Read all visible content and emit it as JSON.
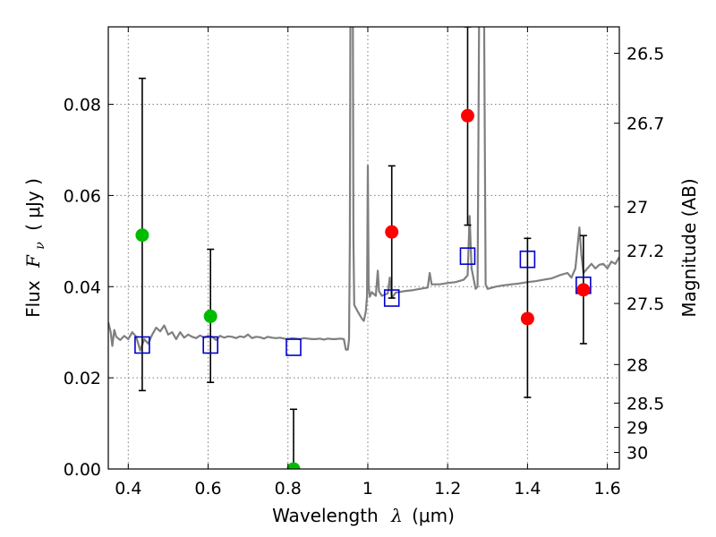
{
  "chart_data": {
    "type": "scatter",
    "xlabel": {
      "prefix": "Wavelength",
      "symbol": "λ",
      "unit": "(μm)"
    },
    "ylabel": {
      "prefix": "Flux",
      "symbol": "F",
      "sub": "ν",
      "unit": "( μJy )"
    },
    "ylabel_right": "Magnitude (AB)",
    "xlim": [
      0.35,
      1.63
    ],
    "ylim": [
      0.0,
      0.097
    ],
    "grid": true,
    "x_ticks": [
      0.4,
      0.6,
      0.8,
      1.0,
      1.2,
      1.4,
      1.6
    ],
    "x_tick_labels": [
      "0.4",
      "0.6",
      "0.8",
      "1",
      "1.2",
      "1.4",
      "1.6"
    ],
    "y_ticks": [
      0.0,
      0.02,
      0.04,
      0.06,
      0.08
    ],
    "y_tick_labels": [
      "0.00",
      "0.02",
      "0.04",
      "0.06",
      "0.08"
    ],
    "right_ticks": [
      {
        "mag": 26.5,
        "label": "26.5"
      },
      {
        "mag": 26.7,
        "label": "26.7"
      },
      {
        "mag": 27.0,
        "label": "27"
      },
      {
        "mag": 27.2,
        "label": "27.2"
      },
      {
        "mag": 27.5,
        "label": "27.5"
      },
      {
        "mag": 28.0,
        "label": "28"
      },
      {
        "mag": 28.5,
        "label": "28.5"
      },
      {
        "mag": 29.0,
        "label": "29"
      },
      {
        "mag": 30.0,
        "label": "30"
      }
    ],
    "colors": {
      "spectrum": "#7f7f7f",
      "optical_points": "#00bb00",
      "nir_points": "#ff0000",
      "model_points": "#0000cc",
      "grid": "#7a7a7a",
      "errorbar": "#000000"
    },
    "observed_points": [
      {
        "x": 0.435,
        "y": 0.0513,
        "err_low": 0.0172,
        "err_high": 0.0857,
        "color": "optical"
      },
      {
        "x": 0.606,
        "y": 0.0335,
        "err_low": 0.019,
        "err_high": 0.0482,
        "color": "optical"
      },
      {
        "x": 0.814,
        "y": 0.0,
        "err_low": 0.0,
        "err_high": 0.0131,
        "color": "optical"
      },
      {
        "x": 1.06,
        "y": 0.052,
        "err_low": 0.0375,
        "err_high": 0.0665,
        "color": "nir"
      },
      {
        "x": 1.25,
        "y": 0.0775,
        "err_low": 0.0535,
        "err_high": 0.097,
        "color": "nir"
      },
      {
        "x": 1.4,
        "y": 0.033,
        "err_low": 0.0157,
        "err_high": 0.0506,
        "color": "nir"
      },
      {
        "x": 1.54,
        "y": 0.0393,
        "err_low": 0.0275,
        "err_high": 0.0512,
        "color": "nir"
      }
    ],
    "model_photometry": [
      {
        "x": 0.435,
        "y": 0.0272
      },
      {
        "x": 0.606,
        "y": 0.0272
      },
      {
        "x": 0.814,
        "y": 0.0267
      },
      {
        "x": 1.06,
        "y": 0.0375
      },
      {
        "x": 1.25,
        "y": 0.0467
      },
      {
        "x": 1.4,
        "y": 0.046
      },
      {
        "x": 1.54,
        "y": 0.0403
      }
    ],
    "spectrum": [
      [
        0.35,
        0.0322
      ],
      [
        0.356,
        0.03
      ],
      [
        0.36,
        0.027
      ],
      [
        0.365,
        0.0305
      ],
      [
        0.37,
        0.029
      ],
      [
        0.38,
        0.0283
      ],
      [
        0.39,
        0.0292
      ],
      [
        0.4,
        0.0285
      ],
      [
        0.41,
        0.03
      ],
      [
        0.42,
        0.029
      ],
      [
        0.43,
        0.026
      ],
      [
        0.44,
        0.0285
      ],
      [
        0.45,
        0.0275
      ],
      [
        0.46,
        0.0295
      ],
      [
        0.47,
        0.031
      ],
      [
        0.48,
        0.0302
      ],
      [
        0.49,
        0.0315
      ],
      [
        0.5,
        0.0295
      ],
      [
        0.51,
        0.03
      ],
      [
        0.52,
        0.0285
      ],
      [
        0.53,
        0.03
      ],
      [
        0.54,
        0.0288
      ],
      [
        0.55,
        0.0295
      ],
      [
        0.56,
        0.029
      ],
      [
        0.57,
        0.0287
      ],
      [
        0.58,
        0.0293
      ],
      [
        0.59,
        0.0288
      ],
      [
        0.6,
        0.0292
      ],
      [
        0.61,
        0.029
      ],
      [
        0.62,
        0.0283
      ],
      [
        0.63,
        0.0292
      ],
      [
        0.64,
        0.0288
      ],
      [
        0.65,
        0.0291
      ],
      [
        0.66,
        0.029
      ],
      [
        0.67,
        0.0287
      ],
      [
        0.68,
        0.0291
      ],
      [
        0.69,
        0.0289
      ],
      [
        0.7,
        0.0295
      ],
      [
        0.71,
        0.0287
      ],
      [
        0.72,
        0.029
      ],
      [
        0.73,
        0.0289
      ],
      [
        0.74,
        0.0286
      ],
      [
        0.75,
        0.029
      ],
      [
        0.76,
        0.0288
      ],
      [
        0.77,
        0.0287
      ],
      [
        0.78,
        0.0288
      ],
      [
        0.79,
        0.0286
      ],
      [
        0.8,
        0.0285
      ],
      [
        0.81,
        0.0287
      ],
      [
        0.82,
        0.0286
      ],
      [
        0.83,
        0.0285
      ],
      [
        0.84,
        0.0287
      ],
      [
        0.85,
        0.0286
      ],
      [
        0.86,
        0.0285
      ],
      [
        0.87,
        0.0285
      ],
      [
        0.88,
        0.0286
      ],
      [
        0.89,
        0.0284
      ],
      [
        0.9,
        0.0286
      ],
      [
        0.91,
        0.0285
      ],
      [
        0.92,
        0.0285
      ],
      [
        0.93,
        0.0286
      ],
      [
        0.94,
        0.0285
      ],
      [
        0.945,
        0.0262
      ],
      [
        0.95,
        0.0262
      ],
      [
        0.953,
        0.0285
      ],
      [
        0.955,
        0.05
      ],
      [
        0.957,
        0.12
      ],
      [
        0.962,
        0.12
      ],
      [
        0.964,
        0.05
      ],
      [
        0.966,
        0.036
      ],
      [
        0.975,
        0.0345
      ],
      [
        0.985,
        0.033
      ],
      [
        0.99,
        0.0325
      ],
      [
        0.995,
        0.0345
      ],
      [
        0.998,
        0.038
      ],
      [
        1.0,
        0.0665
      ],
      [
        1.002,
        0.04
      ],
      [
        1.005,
        0.0378
      ],
      [
        1.01,
        0.0388
      ],
      [
        1.02,
        0.038
      ],
      [
        1.025,
        0.0435
      ],
      [
        1.028,
        0.039
      ],
      [
        1.035,
        0.038
      ],
      [
        1.05,
        0.0385
      ],
      [
        1.055,
        0.042
      ],
      [
        1.06,
        0.0375
      ],
      [
        1.07,
        0.0387
      ],
      [
        1.09,
        0.039
      ],
      [
        1.11,
        0.0392
      ],
      [
        1.13,
        0.0395
      ],
      [
        1.15,
        0.0398
      ],
      [
        1.155,
        0.043
      ],
      [
        1.16,
        0.0405
      ],
      [
        1.18,
        0.0405
      ],
      [
        1.2,
        0.0408
      ],
      [
        1.22,
        0.041
      ],
      [
        1.24,
        0.0415
      ],
      [
        1.25,
        0.0425
      ],
      [
        1.255,
        0.0555
      ],
      [
        1.26,
        0.044
      ],
      [
        1.27,
        0.0395
      ],
      [
        1.275,
        0.04
      ],
      [
        1.28,
        0.12
      ],
      [
        1.29,
        0.12
      ],
      [
        1.295,
        0.0405
      ],
      [
        1.3,
        0.0395
      ],
      [
        1.32,
        0.04
      ],
      [
        1.34,
        0.0403
      ],
      [
        1.36,
        0.0405
      ],
      [
        1.38,
        0.0407
      ],
      [
        1.4,
        0.041
      ],
      [
        1.42,
        0.0412
      ],
      [
        1.44,
        0.0415
      ],
      [
        1.46,
        0.0418
      ],
      [
        1.48,
        0.0425
      ],
      [
        1.5,
        0.043
      ],
      [
        1.51,
        0.042
      ],
      [
        1.52,
        0.044
      ],
      [
        1.53,
        0.053
      ],
      [
        1.535,
        0.047
      ],
      [
        1.54,
        0.043
      ],
      [
        1.55,
        0.044
      ],
      [
        1.56,
        0.045
      ],
      [
        1.57,
        0.044
      ],
      [
        1.58,
        0.0448
      ],
      [
        1.59,
        0.045
      ],
      [
        1.6,
        0.044
      ],
      [
        1.61,
        0.0455
      ],
      [
        1.62,
        0.045
      ],
      [
        1.63,
        0.0465
      ]
    ]
  }
}
